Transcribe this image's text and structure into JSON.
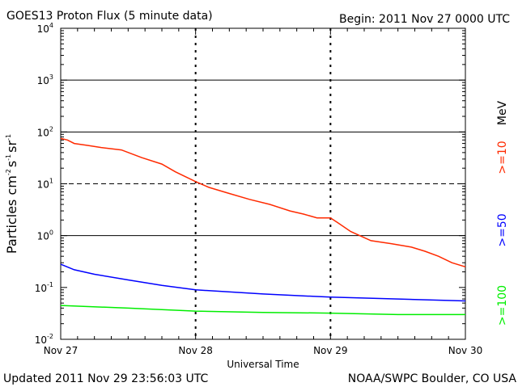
{
  "header": {
    "title": "GOES13 Proton Flux (5 minute data)",
    "begin": "Begin: 2011 Nov 27 0000 UTC"
  },
  "footer": {
    "updated": "Updated 2011 Nov 29 23:56:03 UTC",
    "credit": "NOAA/SWPC Boulder, CO USA"
  },
  "colors": {
    "ge10": "#ff2a00",
    "ge50": "#0000ff",
    "ge100": "#00ee00",
    "axis": "#000000",
    "background": "#ffffff"
  },
  "chart_data": {
    "type": "line",
    "xlabel": "Universal Time",
    "ylabel": {
      "main": "Particles cm",
      "exp1": "-2",
      "unit2": "s",
      "exp2": "-1",
      "unit3": "sr",
      "exp3": "-1"
    },
    "y_scale": "log",
    "ylim": [
      0.01,
      10000
    ],
    "y_ticks": [
      {
        "base": "10",
        "exp": "4"
      },
      {
        "base": "10",
        "exp": "3"
      },
      {
        "base": "10",
        "exp": "2"
      },
      {
        "base": "10",
        "exp": "1"
      },
      {
        "base": "10",
        "exp": "0"
      },
      {
        "base": "10",
        "exp": "-1"
      },
      {
        "base": "10",
        "exp": "-2"
      }
    ],
    "x_ticks": [
      "Nov 27",
      "Nov 28",
      "Nov 29",
      "Nov 30"
    ],
    "xlim_days": [
      0,
      3
    ],
    "thresholds": [
      {
        "value": 10,
        "style": "dashed"
      },
      {
        "value": 1,
        "style": "solid"
      },
      {
        "value": 100,
        "style": "solid"
      },
      {
        "value": 1000,
        "style": "solid"
      }
    ],
    "legend": {
      "unit": "MeV",
      "placement": "right"
    },
    "series": [
      {
        "name": ">=10",
        "x_days": [
          0,
          0.05,
          0.1,
          0.2,
          0.3,
          0.45,
          0.6,
          0.75,
          0.85,
          1.0,
          1.1,
          1.25,
          1.4,
          1.55,
          1.7,
          1.8,
          1.9,
          2.0,
          2.05,
          2.15,
          2.3,
          2.45,
          2.6,
          2.7,
          2.8,
          2.9,
          3.0
        ],
        "values": [
          75,
          70,
          60,
          55,
          50,
          45,
          32,
          24,
          17,
          11,
          8.5,
          6.5,
          5,
          4,
          3,
          2.6,
          2.2,
          2.2,
          1.8,
          1.2,
          0.8,
          0.7,
          0.6,
          0.5,
          0.4,
          0.3,
          0.25
        ]
      },
      {
        "name": ">=50",
        "x_days": [
          0,
          0.1,
          0.25,
          0.5,
          0.75,
          1.0,
          1.5,
          2.0,
          2.5,
          3.0
        ],
        "values": [
          0.28,
          0.22,
          0.18,
          0.14,
          0.11,
          0.09,
          0.075,
          0.065,
          0.06,
          0.055
        ]
      },
      {
        "name": ">=100",
        "x_days": [
          0,
          0.5,
          1.0,
          1.5,
          2.0,
          2.5,
          3.0
        ],
        "values": [
          0.045,
          0.04,
          0.035,
          0.033,
          0.032,
          0.03,
          0.03
        ]
      }
    ]
  }
}
